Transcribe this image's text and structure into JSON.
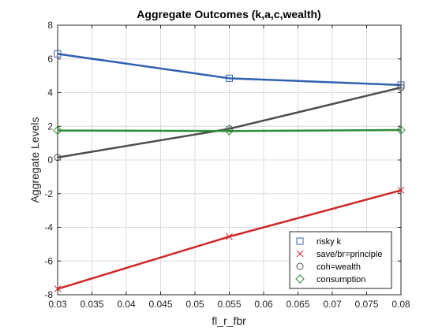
{
  "chart_data": {
    "type": "line",
    "title": "Aggregate Outcomes (k,a,c,wealth)",
    "xlabel": "fl_r_fbr",
    "ylabel": "Aggregate Levels",
    "xlim": [
      0.03,
      0.08
    ],
    "ylim": [
      -8,
      8
    ],
    "xticks": [
      0.03,
      0.035,
      0.04,
      0.045,
      0.05,
      0.055,
      0.06,
      0.065,
      0.07,
      0.075,
      0.08
    ],
    "xtick_labels": [
      "0.03",
      "0.035",
      "0.04",
      "0.045",
      "0.05",
      "0.055",
      "0.06",
      "0.065",
      "0.07",
      "0.075",
      "0.08"
    ],
    "yticks": [
      -8,
      -6,
      -4,
      -2,
      0,
      2,
      4,
      6,
      8
    ],
    "ytick_labels": [
      "-8",
      "-6",
      "-4",
      "-2",
      "0",
      "2",
      "4",
      "6",
      "8"
    ],
    "grid": true,
    "legend_position": "bottom-right",
    "x": [
      0.03,
      0.055,
      0.08
    ],
    "series": [
      {
        "name": "risky k",
        "values": [
          6.3,
          4.85,
          4.45
        ],
        "color": "#3060b0",
        "marker": "square"
      },
      {
        "name": "save/br=principle",
        "values": [
          -7.65,
          -4.55,
          -1.8
        ],
        "color": "#d02828",
        "marker": "x"
      },
      {
        "name": "coh=wealth",
        "values": [
          0.15,
          1.85,
          4.3
        ],
        "color": "#4d4d4d",
        "marker": "circle"
      },
      {
        "name": "consumption",
        "values": [
          1.75,
          1.72,
          1.78
        ],
        "color": "#2e8b3a",
        "marker": "diamond"
      }
    ]
  }
}
